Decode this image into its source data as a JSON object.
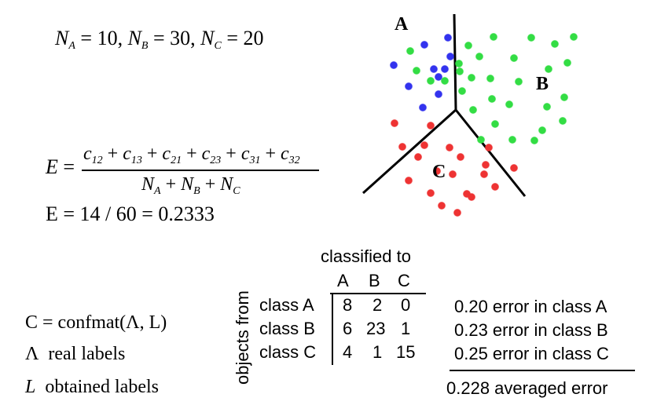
{
  "equations": {
    "counts": {
      "N": "N",
      "A": "A",
      "B": "B",
      "C": "C",
      "v1": "10",
      "v2": "30",
      "v3": "20"
    },
    "error_def": {
      "lhs": "E",
      "numerator_terms": [
        "12",
        "13",
        "21",
        "23",
        "31",
        "32"
      ],
      "den_N": "N",
      "den_subs": [
        "A",
        "B",
        "C"
      ]
    },
    "error_value": "E = 14 / 60 = 0.2333"
  },
  "scatter": {
    "region_labels": [
      "A",
      "B",
      "C"
    ],
    "class_counts": {
      "A": 10,
      "B": 30,
      "C": 20
    },
    "colors": {
      "A": "#3333ee",
      "B": "#33dd44",
      "C": "#ee3333"
    }
  },
  "definitions": {
    "confmat": "C = confmat(Λ, L)",
    "real": {
      "symbol": "Λ",
      "text": "real labels"
    },
    "obtained": {
      "symbol": "L",
      "text": "obtained labels"
    }
  },
  "confusion": {
    "header": "classified to",
    "side_label": "objects from",
    "columns": [
      "A",
      "B",
      "C"
    ],
    "rows": [
      {
        "label": "class A",
        "cells": [
          "8",
          "2",
          "0"
        ],
        "error": "0.20 error in class A"
      },
      {
        "label": "class B",
        "cells": [
          "6",
          "23",
          "1"
        ],
        "error": "0.23 error in class B"
      },
      {
        "label": "class C",
        "cells": [
          "4",
          "1",
          "15"
        ],
        "error": "0.25 error in class C"
      }
    ],
    "averaged": "0.228 averaged error"
  }
}
